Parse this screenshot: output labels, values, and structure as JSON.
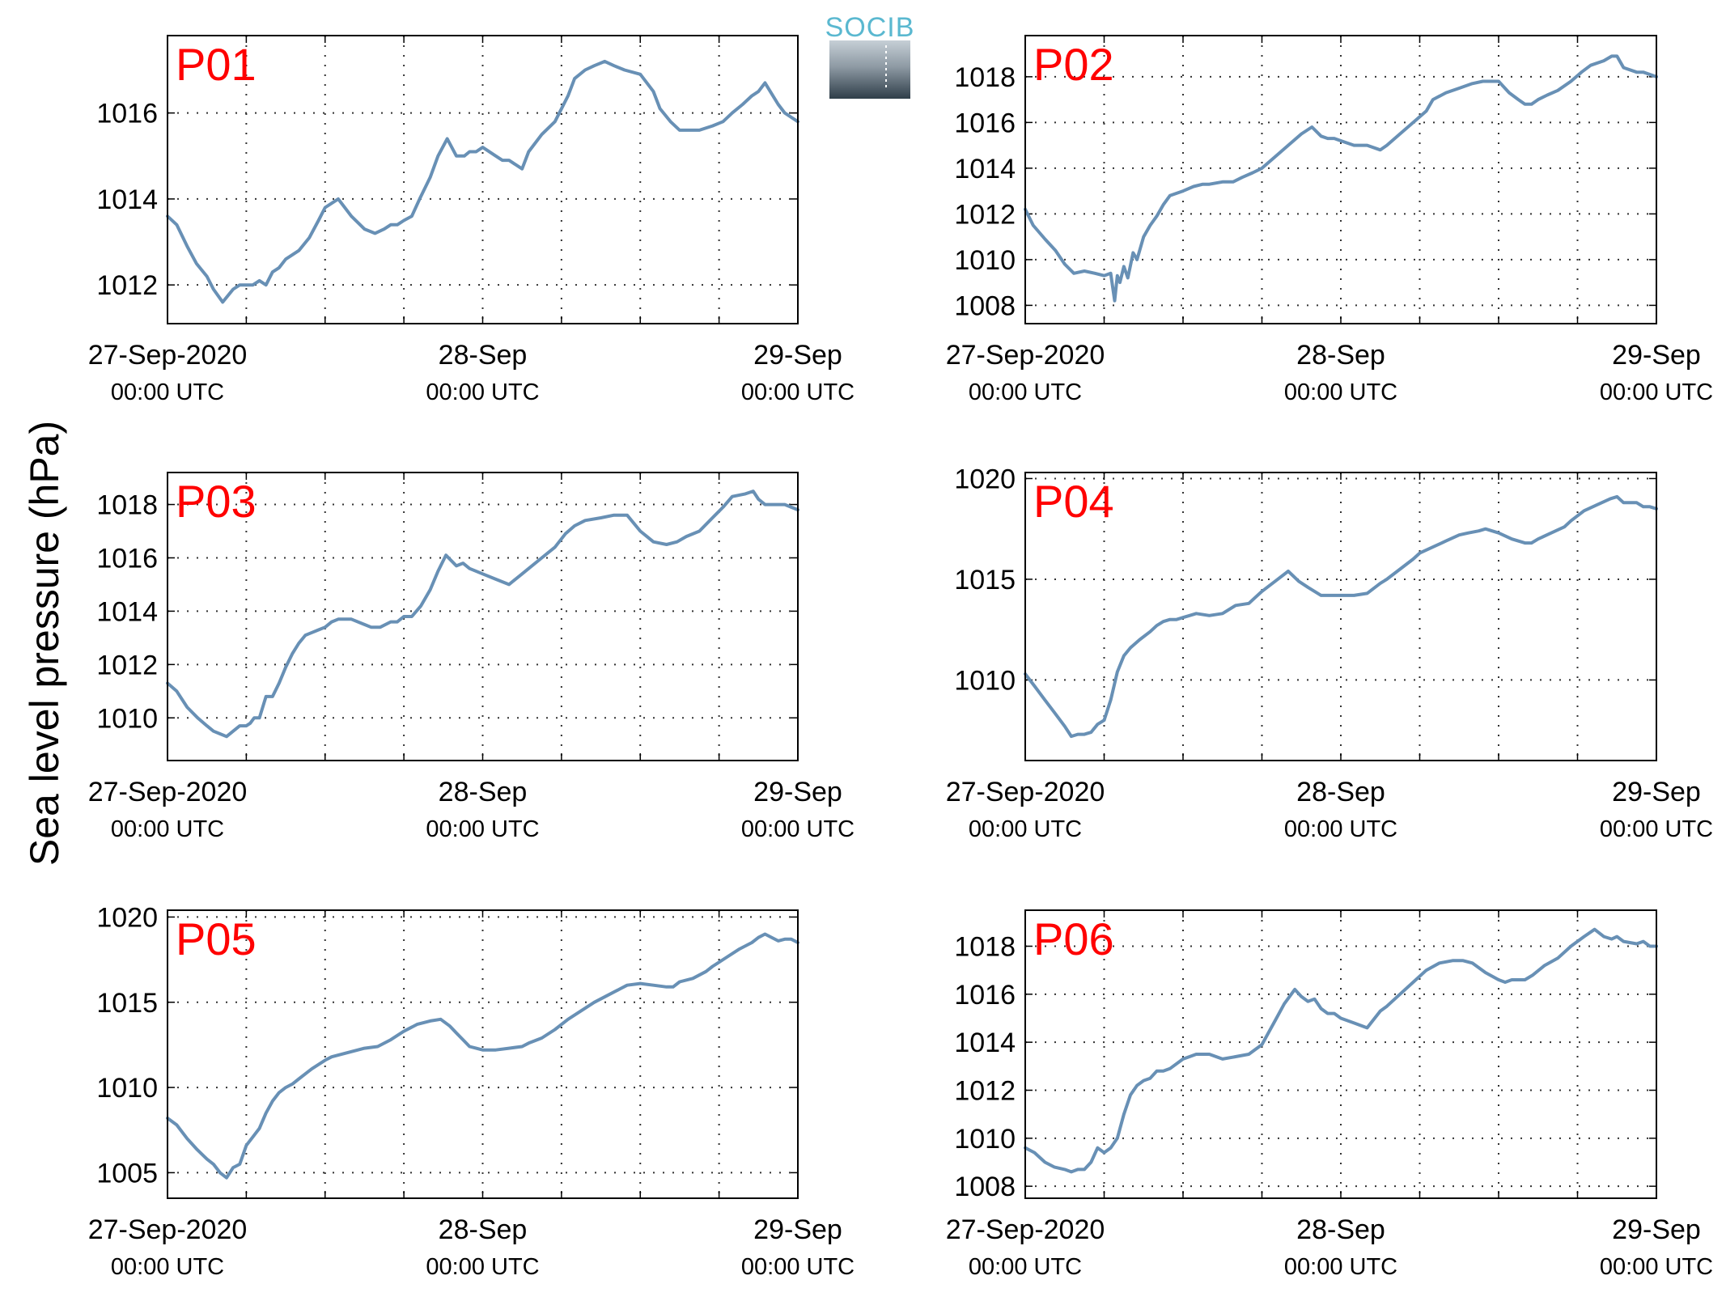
{
  "figure": {
    "ylabel": "Sea level pressure (hPa)",
    "logo_text": "SOCIB",
    "line_color": "#6890b5",
    "label_color": "#ff0000"
  },
  "x_axis": {
    "range_hours": [
      0,
      48
    ],
    "ticks": [
      {
        "hour": 0,
        "line1": "27-Sep-2020",
        "line2": "00:00 UTC"
      },
      {
        "hour": 24,
        "line1": "28-Sep",
        "line2": "00:00 UTC"
      },
      {
        "hour": 48,
        "line1": "29-Sep",
        "line2": "00:00 UTC"
      }
    ],
    "grid_hours": [
      6,
      12,
      18,
      24,
      30,
      36,
      42
    ]
  },
  "chart_data": [
    {
      "type": "line",
      "label": "P01",
      "ylim": [
        1011.1,
        1017.8
      ],
      "yticks": [
        1012,
        1014,
        1016
      ],
      "x": [
        0,
        0.7,
        1.5,
        2.2,
        3,
        3.5,
        4.2,
        5,
        5.5,
        6,
        6.5,
        7,
        7.5,
        8,
        8.5,
        9,
        10,
        10.8,
        11.5,
        12,
        12.5,
        13,
        14,
        15,
        15.8,
        16.5,
        17,
        17.5,
        18,
        18.6,
        19.2,
        20,
        20.6,
        21.3,
        22,
        22.6,
        23,
        23.5,
        24,
        25,
        25.5,
        26,
        27,
        27.5,
        28.5,
        29.5,
        30.5,
        31,
        31.8,
        32.5,
        33.3,
        34,
        34.8,
        36,
        37,
        37.5,
        38.3,
        39,
        39.8,
        40.5,
        41.5,
        42.3,
        43,
        43.8,
        44.5,
        45,
        45.5,
        46.5,
        47,
        47.5,
        48
      ],
      "y": [
        1013.6,
        1013.4,
        1012.9,
        1012.5,
        1012.2,
        1011.9,
        1011.6,
        1011.9,
        1012.0,
        1012.0,
        1012.0,
        1012.1,
        1012.0,
        1012.3,
        1012.4,
        1012.6,
        1012.8,
        1013.1,
        1013.5,
        1013.8,
        1013.9,
        1014.0,
        1013.6,
        1013.3,
        1013.2,
        1013.3,
        1013.4,
        1013.4,
        1013.5,
        1013.6,
        1014.0,
        1014.5,
        1015.0,
        1015.4,
        1015.0,
        1015.0,
        1015.1,
        1015.1,
        1015.2,
        1015.0,
        1014.9,
        1014.9,
        1014.7,
        1015.1,
        1015.5,
        1015.8,
        1016.4,
        1016.8,
        1017.0,
        1017.1,
        1017.2,
        1017.1,
        1017.0,
        1016.9,
        1016.5,
        1016.1,
        1015.8,
        1015.6,
        1015.6,
        1015.6,
        1015.7,
        1015.8,
        1016.0,
        1016.2,
        1016.4,
        1016.5,
        1016.7,
        1016.2,
        1016.0,
        1015.9,
        1015.8
      ]
    },
    {
      "type": "line",
      "label": "P02",
      "ylim": [
        1007.2,
        1019.8
      ],
      "yticks": [
        1008,
        1010,
        1012,
        1014,
        1016,
        1018
      ],
      "x": [
        0,
        0.6,
        1.5,
        2.3,
        3,
        3.7,
        4.5,
        5.3,
        6,
        6.5,
        6.8,
        7,
        7.2,
        7.5,
        7.8,
        8.2,
        8.5,
        9,
        9.5,
        10,
        10.5,
        11,
        12,
        12.8,
        13.5,
        14,
        15,
        15.8,
        16.5,
        17.3,
        18,
        19,
        20,
        21,
        21.8,
        22.5,
        23,
        23.5,
        24,
        25,
        26,
        27,
        27.5,
        28.5,
        29.5,
        30.5,
        31,
        32,
        33,
        34,
        34.8,
        35.3,
        36,
        36.8,
        37.5,
        38,
        38.5,
        39,
        39.7,
        40.5,
        41.5,
        42.3,
        43,
        44,
        44.6,
        45,
        45.5,
        46.5,
        47,
        47.5,
        48
      ],
      "y": [
        1012.2,
        1011.5,
        1010.9,
        1010.4,
        1009.8,
        1009.4,
        1009.5,
        1009.4,
        1009.3,
        1009.4,
        1008.2,
        1009.3,
        1009.0,
        1009.7,
        1009.2,
        1010.3,
        1010.0,
        1011.0,
        1011.5,
        1011.9,
        1012.4,
        1012.8,
        1013.0,
        1013.2,
        1013.3,
        1013.3,
        1013.4,
        1013.4,
        1013.6,
        1013.8,
        1014.0,
        1014.5,
        1015.0,
        1015.5,
        1015.8,
        1015.4,
        1015.3,
        1015.3,
        1015.2,
        1015.0,
        1015.0,
        1014.8,
        1015.0,
        1015.5,
        1016.0,
        1016.5,
        1017.0,
        1017.3,
        1017.5,
        1017.7,
        1017.8,
        1017.8,
        1017.8,
        1017.3,
        1017.0,
        1016.8,
        1016.8,
        1017.0,
        1017.2,
        1017.4,
        1017.8,
        1018.2,
        1018.5,
        1018.7,
        1018.9,
        1018.9,
        1018.4,
        1018.2,
        1018.2,
        1018.1,
        1018.0
      ]
    },
    {
      "type": "line",
      "label": "P03",
      "ylim": [
        1008.4,
        1019.2
      ],
      "yticks": [
        1010,
        1012,
        1014,
        1016,
        1018
      ],
      "x": [
        0,
        0.7,
        1.5,
        2.3,
        3,
        3.5,
        4,
        4.5,
        5,
        5.5,
        6,
        6.3,
        6.6,
        7,
        7.5,
        8,
        8.5,
        9,
        9.5,
        10,
        10.5,
        11,
        11.5,
        12,
        12.5,
        13,
        14,
        15,
        15.5,
        16.2,
        17,
        17.5,
        18,
        18.6,
        19.3,
        20,
        20.6,
        21.2,
        22,
        22.5,
        23,
        24,
        25,
        26,
        27,
        27.5,
        28.5,
        29.5,
        30.3,
        31,
        31.8,
        33,
        34,
        35,
        36,
        36.5,
        37,
        38,
        38.8,
        39.5,
        40.5,
        41.5,
        42.3,
        43,
        44,
        44.6,
        45,
        45.5,
        46.5,
        47,
        47.5,
        48
      ],
      "y": [
        1011.3,
        1011.0,
        1010.4,
        1010.0,
        1009.7,
        1009.5,
        1009.4,
        1009.3,
        1009.5,
        1009.7,
        1009.7,
        1009.8,
        1010.0,
        1010.0,
        1010.8,
        1010.8,
        1011.3,
        1011.9,
        1012.4,
        1012.8,
        1013.1,
        1013.2,
        1013.3,
        1013.4,
        1013.6,
        1013.7,
        1013.7,
        1013.5,
        1013.4,
        1013.4,
        1013.6,
        1013.6,
        1013.8,
        1013.8,
        1014.2,
        1014.8,
        1015.5,
        1016.1,
        1015.7,
        1015.8,
        1015.6,
        1015.4,
        1015.2,
        1015.0,
        1015.4,
        1015.6,
        1016.0,
        1016.4,
        1016.9,
        1017.2,
        1017.4,
        1017.5,
        1017.6,
        1017.6,
        1017.0,
        1016.8,
        1016.6,
        1016.5,
        1016.6,
        1016.8,
        1017.0,
        1017.5,
        1017.9,
        1018.3,
        1018.4,
        1018.5,
        1018.2,
        1018.0,
        1018.0,
        1018.0,
        1017.9,
        1017.8
      ]
    },
    {
      "type": "line",
      "label": "P04",
      "ylim": [
        1006.0,
        1020.3
      ],
      "yticks": [
        1010,
        1015,
        1020
      ],
      "x": [
        0,
        0.7,
        1.5,
        2.2,
        3,
        3.5,
        4,
        4.5,
        5,
        5.5,
        6,
        6.5,
        7,
        7.5,
        8,
        8.7,
        9.5,
        10,
        10.5,
        11,
        11.5,
        12,
        12.5,
        13,
        14,
        15,
        16,
        17,
        17.5,
        18,
        19,
        20,
        20.8,
        21.5,
        22,
        22.5,
        23,
        23.5,
        24,
        25,
        26,
        27,
        27.5,
        28.5,
        29.5,
        30,
        31,
        32,
        33,
        33.7,
        34.5,
        35,
        36,
        37,
        38,
        38.5,
        39,
        40,
        41,
        41.5,
        42.5,
        43.5,
        44.5,
        45,
        45.5,
        46.5,
        47,
        47.5,
        48
      ],
      "y": [
        1010.3,
        1009.7,
        1009.0,
        1008.4,
        1007.7,
        1007.2,
        1007.3,
        1007.3,
        1007.4,
        1007.8,
        1008.0,
        1009.0,
        1010.4,
        1011.2,
        1011.6,
        1012.0,
        1012.4,
        1012.7,
        1012.9,
        1013.0,
        1013.0,
        1013.1,
        1013.2,
        1013.3,
        1013.2,
        1013.3,
        1013.7,
        1013.8,
        1014.1,
        1014.4,
        1014.9,
        1015.4,
        1014.9,
        1014.6,
        1014.4,
        1014.2,
        1014.2,
        1014.2,
        1014.2,
        1014.2,
        1014.3,
        1014.8,
        1015.0,
        1015.5,
        1016.0,
        1016.3,
        1016.6,
        1016.9,
        1017.2,
        1017.3,
        1017.4,
        1017.5,
        1017.3,
        1017.0,
        1016.8,
        1016.8,
        1017.0,
        1017.3,
        1017.6,
        1017.9,
        1018.4,
        1018.7,
        1019.0,
        1019.1,
        1018.8,
        1018.8,
        1018.6,
        1018.6,
        1018.5
      ]
    },
    {
      "type": "line",
      "label": "P05",
      "ylim": [
        1003.5,
        1020.4
      ],
      "yticks": [
        1005,
        1010,
        1015,
        1020
      ],
      "x": [
        0,
        0.7,
        1.5,
        2.2,
        3,
        3.5,
        4,
        4.5,
        5,
        5.5,
        6,
        6.5,
        7,
        7.5,
        8,
        8.5,
        9,
        9.5,
        10,
        11,
        12,
        12.5,
        13,
        14,
        15,
        16,
        17,
        18,
        19,
        20,
        20.8,
        21.5,
        22,
        22.5,
        23,
        23.5,
        24,
        25,
        26,
        27,
        27.5,
        28.5,
        29.5,
        30.5,
        31.5,
        32.5,
        33.5,
        34.5,
        35,
        36,
        37,
        38,
        38.5,
        39,
        40,
        41,
        41.5,
        42.5,
        43.5,
        44.5,
        45,
        45.5,
        46.5,
        47,
        47.5,
        48
      ],
      "y": [
        1008.2,
        1007.8,
        1007.0,
        1006.4,
        1005.8,
        1005.5,
        1005.0,
        1004.7,
        1005.3,
        1005.5,
        1006.6,
        1007.1,
        1007.6,
        1008.5,
        1009.2,
        1009.7,
        1010.0,
        1010.2,
        1010.5,
        1011.1,
        1011.6,
        1011.8,
        1011.9,
        1012.1,
        1012.3,
        1012.4,
        1012.8,
        1013.3,
        1013.7,
        1013.9,
        1014.0,
        1013.6,
        1013.2,
        1012.8,
        1012.4,
        1012.3,
        1012.2,
        1012.2,
        1012.3,
        1012.4,
        1012.6,
        1012.9,
        1013.4,
        1014.0,
        1014.5,
        1015.0,
        1015.4,
        1015.8,
        1016.0,
        1016.1,
        1016.0,
        1015.9,
        1015.9,
        1016.2,
        1016.4,
        1016.8,
        1017.1,
        1017.6,
        1018.1,
        1018.5,
        1018.8,
        1019.0,
        1018.6,
        1018.7,
        1018.7,
        1018.5
      ]
    },
    {
      "type": "line",
      "label": "P06",
      "ylim": [
        1007.5,
        1019.5
      ],
      "yticks": [
        1008,
        1010,
        1012,
        1014,
        1016,
        1018
      ],
      "x": [
        0,
        0.7,
        1.5,
        2.2,
        3,
        3.5,
        4,
        4.5,
        5,
        5.5,
        6,
        6.5,
        7,
        7.5,
        8,
        8.5,
        9,
        9.5,
        10,
        10.5,
        11,
        12,
        12.5,
        13,
        14,
        15,
        16,
        17,
        18,
        19,
        19.7,
        20.5,
        21,
        21.5,
        22,
        22.5,
        23,
        23.5,
        24,
        25,
        26,
        27,
        27.5,
        28.5,
        29.5,
        30.5,
        31.5,
        32.5,
        33.3,
        34,
        35,
        36,
        36.5,
        37,
        38,
        38.6,
        39.5,
        40.5,
        41.5,
        42.5,
        43.3,
        44,
        44.6,
        45,
        45.5,
        46.5,
        47,
        47.5,
        48
      ],
      "y": [
        1009.6,
        1009.4,
        1009.0,
        1008.8,
        1008.7,
        1008.6,
        1008.7,
        1008.7,
        1009.0,
        1009.6,
        1009.4,
        1009.6,
        1010.0,
        1011.0,
        1011.8,
        1012.2,
        1012.4,
        1012.5,
        1012.8,
        1012.8,
        1012.9,
        1013.3,
        1013.4,
        1013.5,
        1013.5,
        1013.3,
        1013.4,
        1013.5,
        1013.9,
        1014.9,
        1015.6,
        1016.2,
        1015.9,
        1015.7,
        1015.8,
        1015.4,
        1015.2,
        1015.2,
        1015.0,
        1014.8,
        1014.6,
        1015.3,
        1015.5,
        1016.0,
        1016.5,
        1017.0,
        1017.3,
        1017.4,
        1017.4,
        1017.3,
        1016.9,
        1016.6,
        1016.5,
        1016.6,
        1016.6,
        1016.8,
        1017.2,
        1017.5,
        1018.0,
        1018.4,
        1018.7,
        1018.4,
        1018.3,
        1018.4,
        1018.2,
        1018.1,
        1018.2,
        1018.0,
        1018.0
      ]
    }
  ]
}
